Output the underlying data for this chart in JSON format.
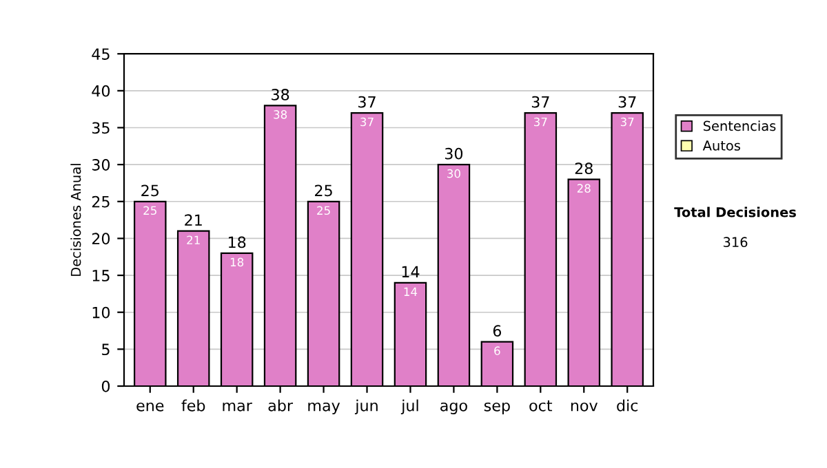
{
  "chart_data": {
    "type": "bar",
    "stacked": true,
    "ylabel": "Decisiones Anual",
    "categories": [
      "ene",
      "feb",
      "mar",
      "abr",
      "may",
      "jun",
      "jul",
      "ago",
      "sep",
      "oct",
      "nov",
      "dic"
    ],
    "series": [
      {
        "name": "Sentencias",
        "color": "#e080c8",
        "values": [
          25,
          21,
          18,
          38,
          25,
          37,
          14,
          30,
          6,
          37,
          28,
          37
        ]
      },
      {
        "name": "Autos",
        "color": "#ffffb0",
        "values": [
          null,
          null,
          null,
          null,
          null,
          null,
          null,
          null,
          null,
          null,
          null,
          null
        ]
      }
    ],
    "data_labels": true,
    "totals": [
      "25",
      "21",
      "18",
      "38",
      "25",
      "37",
      "14",
      "30",
      "6",
      "37",
      "28",
      "37"
    ],
    "ylim": [
      0,
      45
    ],
    "yticks": [
      0,
      5,
      10,
      15,
      20,
      25,
      30,
      35,
      40,
      45
    ],
    "grid": "y",
    "legend": "right",
    "annotations": [
      "Total Decisiones",
      "316"
    ]
  }
}
